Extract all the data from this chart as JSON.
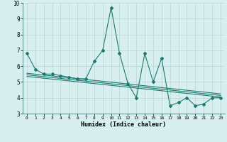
{
  "x": [
    0,
    1,
    2,
    3,
    4,
    5,
    6,
    7,
    8,
    9,
    10,
    11,
    12,
    13,
    14,
    15,
    16,
    17,
    18,
    19,
    20,
    21,
    22,
    23
  ],
  "y": [
    6.8,
    5.8,
    5.5,
    5.5,
    5.4,
    5.3,
    5.2,
    5.2,
    6.3,
    7.0,
    9.7,
    6.8,
    4.9,
    4.0,
    6.8,
    5.0,
    6.5,
    3.5,
    3.7,
    4.0,
    3.5,
    3.6,
    4.0,
    4.0
  ],
  "trend_lines": [
    {
      "x0": 0,
      "y0": 5.55,
      "x1": 23,
      "y1": 4.25
    },
    {
      "x0": 0,
      "y0": 5.45,
      "x1": 23,
      "y1": 4.15
    },
    {
      "x0": 0,
      "y0": 5.35,
      "x1": 23,
      "y1": 4.05
    }
  ],
  "line_color": "#1a7a6e",
  "bg_color": "#d7f0ef",
  "grid_color": "#b8d4d0",
  "xlabel": "Humidex (Indice chaleur)",
  "xlim": [
    -0.5,
    23.5
  ],
  "ylim": [
    3,
    10
  ],
  "yticks": [
    3,
    4,
    5,
    6,
    7,
    8,
    9,
    10
  ],
  "xticks": [
    0,
    1,
    2,
    3,
    4,
    5,
    6,
    7,
    8,
    9,
    10,
    11,
    12,
    13,
    14,
    15,
    16,
    17,
    18,
    19,
    20,
    21,
    22,
    23
  ]
}
